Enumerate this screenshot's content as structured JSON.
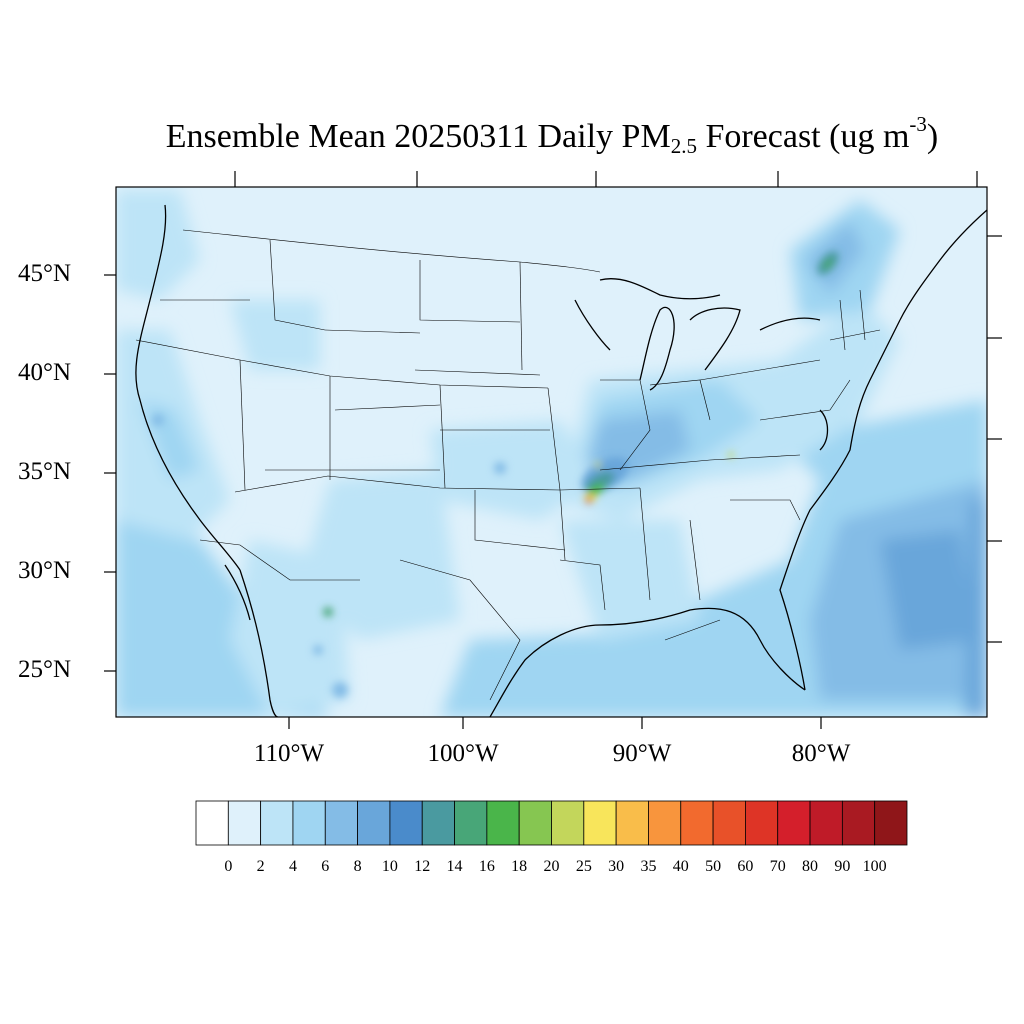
{
  "title": {
    "main": "Ensemble Mean 20250311 Daily PM",
    "sub": "2.5",
    "rest": " Forecast (ug m",
    "sup": "-3",
    "close": ")"
  },
  "latitude_labels": [
    "45°N",
    "40°N",
    "35°N",
    "30°N",
    "25°N"
  ],
  "longitude_labels": [
    "110°W",
    "100°W",
    "90°W",
    "80°W"
  ],
  "colorbar": {
    "labels": [
      "0",
      "2",
      "4",
      "6",
      "8",
      "10",
      "12",
      "14",
      "16",
      "18",
      "20",
      "25",
      "30",
      "35",
      "40",
      "50",
      "60",
      "70",
      "80",
      "90",
      "100"
    ],
    "colors": [
      "#ffffff",
      "#dff1fb",
      "#bde4f7",
      "#9fd5f2",
      "#84bce6",
      "#69a6da",
      "#4a8bcb",
      "#4a9aa0",
      "#48a678",
      "#4ab54a",
      "#86c651",
      "#c3d65b",
      "#f8e55b",
      "#f9bd4a",
      "#f8953d",
      "#f26a2e",
      "#e85129",
      "#de3426",
      "#d41f2b",
      "#bf1b28",
      "#a91a22",
      "#8f1619"
    ]
  },
  "map_colors": {
    "background": "#dff1fb",
    "low": "#bde4f7",
    "mid": "#9fd5f2",
    "moderate": "#84bce6",
    "high": "#69a6da",
    "higher": "#4a8bcb",
    "teal": "#4a9aa0",
    "green": "#48a678",
    "bright_green": "#4ab54a",
    "yellow_green": "#c3d65b",
    "yellow": "#f8e55b",
    "orange": "#f8953d",
    "red": "#de3426"
  }
}
